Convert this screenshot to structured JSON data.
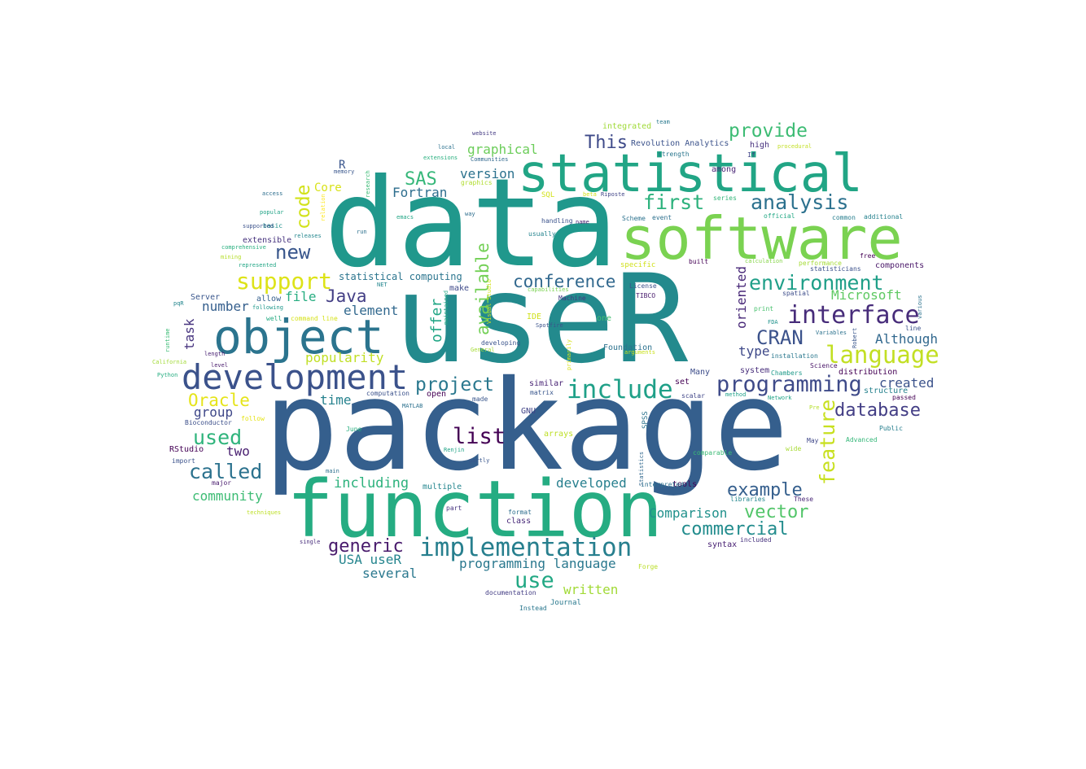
{
  "words": [
    {
      "text": "useR",
      "color": "#238a8d"
    },
    {
      "text": "package",
      "color": "#355f8d"
    },
    {
      "text": "data",
      "color": "#20988c"
    },
    {
      "text": "function",
      "color": "#25ac82"
    },
    {
      "text": "software",
      "color": "#7ad251"
    },
    {
      "text": "statistical",
      "color": "#21a585"
    },
    {
      "text": "object",
      "color": "#2b748e"
    },
    {
      "text": "development",
      "color": "#3b528b"
    },
    {
      "text": "implementation",
      "color": "#277f8e"
    },
    {
      "text": "interface",
      "color": "#472c7a"
    },
    {
      "text": "language",
      "color": "#c2df23"
    },
    {
      "text": "programming",
      "color": "#3e4a89"
    },
    {
      "text": "environment",
      "color": "#1f9f88"
    },
    {
      "text": "analysis",
      "color": "#2c718e"
    },
    {
      "text": "support",
      "color": "#dde318"
    },
    {
      "text": "include",
      "color": "#1fa088"
    },
    {
      "text": "provide",
      "color": "#3dbc74"
    },
    {
      "text": "first",
      "color": "#2db27d"
    },
    {
      "text": "database",
      "color": "#433e85"
    },
    {
      "text": "feature",
      "color": "#c8e020"
    },
    {
      "text": "called",
      "color": "#2c728e"
    },
    {
      "text": "used",
      "color": "#2fb47c"
    },
    {
      "text": "list",
      "color": "#440154"
    },
    {
      "text": "project",
      "color": "#2a788e"
    },
    {
      "text": "CRAN",
      "color": "#3b528b"
    },
    {
      "text": "conference",
      "color": "#31688e"
    },
    {
      "text": "commercial",
      "color": "#228c8d"
    },
    {
      "text": "vector",
      "color": "#52c569"
    },
    {
      "text": "example",
      "color": "#355f8d"
    },
    {
      "text": "code",
      "color": "#d2e21b"
    },
    {
      "text": "generic",
      "color": "#481a6c"
    },
    {
      "text": "new",
      "color": "#39568c"
    },
    {
      "text": "use",
      "color": "#22a884"
    },
    {
      "text": "available",
      "color": "#73d056"
    },
    {
      "text": "Java",
      "color": "#433e85"
    },
    {
      "text": "This",
      "color": "#3e4a89"
    },
    {
      "text": "Oracle",
      "color": "#e5e419"
    },
    {
      "text": "programming language",
      "color": "#2a788e"
    },
    {
      "text": "SAS",
      "color": "#35b779"
    },
    {
      "text": "Microsoft",
      "color": "#5ec962"
    },
    {
      "text": "offer",
      "color": "#21a685"
    },
    {
      "text": "including",
      "color": "#2db27d"
    },
    {
      "text": "created",
      "color": "#3b528b"
    },
    {
      "text": "Although",
      "color": "#31688e"
    },
    {
      "text": "oriented",
      "color": "#482878"
    },
    {
      "text": "graphical",
      "color": "#6ccd5a"
    },
    {
      "text": "popularity",
      "color": "#c0df25"
    },
    {
      "text": "developed",
      "color": "#277f8e"
    },
    {
      "text": "community",
      "color": "#3dbc74"
    },
    {
      "text": "Comparison",
      "color": "#21918c"
    },
    {
      "text": "element",
      "color": "#31688e"
    },
    {
      "text": "version",
      "color": "#2c728e"
    },
    {
      "text": "Fortran",
      "color": "#2e6e8e"
    },
    {
      "text": "USA useR",
      "color": "#25858e"
    },
    {
      "text": "several",
      "color": "#2a788e"
    },
    {
      "text": "written",
      "color": "#a2da37"
    },
    {
      "text": "number",
      "color": "#355f8d"
    },
    {
      "text": "task",
      "color": "#46337e"
    },
    {
      "text": "file",
      "color": "#27ad81"
    },
    {
      "text": "time",
      "color": "#26828e"
    },
    {
      "text": "group",
      "color": "#3f4889"
    },
    {
      "text": "two",
      "color": "#481f70"
    },
    {
      "text": "type",
      "color": "#3e4989"
    },
    {
      "text": "Core",
      "color": "#d8e219"
    },
    {
      "text": "R",
      "color": "#39558c"
    },
    {
      "text": "statistical computing",
      "color": "#2b758e"
    },
    {
      "text": "Revolution Analytics",
      "color": "#3b528b"
    },
    {
      "text": "integrated",
      "color": "#a0da39"
    },
    {
      "text": "distribution",
      "color": "#440154"
    },
    {
      "text": "structure",
      "color": "#26828e"
    },
    {
      "text": "Foundation",
      "color": "#2c728e"
    },
    {
      "text": "multiple",
      "color": "#24868e"
    },
    {
      "text": "tools",
      "color": "#440154"
    },
    {
      "text": "system",
      "color": "#472d7b"
    },
    {
      "text": "similar",
      "color": "#482374"
    },
    {
      "text": "Many",
      "color": "#3d4d8a"
    },
    {
      "text": "set",
      "color": "#440154"
    },
    {
      "text": "components",
      "color": "#481668"
    },
    {
      "text": "syntax",
      "color": "#482173"
    },
    {
      "text": "SPSS",
      "color": "#2c738e"
    },
    {
      "text": "matrix",
      "color": "#39568c"
    },
    {
      "text": "computation",
      "color": "#3b518b"
    },
    {
      "text": "open",
      "color": "#440154"
    },
    {
      "text": "GNU",
      "color": "#414487"
    },
    {
      "text": "arrays",
      "color": "#bddf26"
    },
    {
      "text": "extensible",
      "color": "#46327e"
    },
    {
      "text": "Server",
      "color": "#39568c"
    },
    {
      "text": "allow",
      "color": "#355f8d"
    },
    {
      "text": "License",
      "color": "#3b528b"
    },
    {
      "text": "TIBCO",
      "color": "#481b6d"
    },
    {
      "text": "Machine",
      "color": "#453882"
    },
    {
      "text": "IDE",
      "color": "#d0e11c"
    },
    {
      "text": "one",
      "color": "#44bf70"
    },
    {
      "text": "Scheme",
      "color": "#2c728e"
    },
    {
      "text": "handling",
      "color": "#3b528b"
    },
    {
      "text": "usually",
      "color": "#25848e"
    },
    {
      "text": "make",
      "color": "#3e4a89"
    },
    {
      "text": "developing",
      "color": "#3a548c"
    },
    {
      "text": "high",
      "color": "#46307e"
    },
    {
      "text": "among",
      "color": "#482475"
    },
    {
      "text": "strength",
      "color": "#2a768e"
    },
    {
      "text": "series",
      "color": "#34b679"
    },
    {
      "text": "event",
      "color": "#2d708e"
    },
    {
      "text": "official",
      "color": "#22a884"
    },
    {
      "text": "common",
      "color": "#277e8e"
    },
    {
      "text": "additional",
      "color": "#26828e"
    },
    {
      "text": "built",
      "color": "#440154"
    },
    {
      "text": "performance",
      "color": "#a5db36"
    },
    {
      "text": "free",
      "color": "#440154"
    },
    {
      "text": "statisticians",
      "color": "#3b518b"
    },
    {
      "text": "spatial",
      "color": "#3d4d8a"
    },
    {
      "text": "calculation",
      "color": "#86d549"
    },
    {
      "text": "Science",
      "color": "#481467"
    },
    {
      "text": "Chambers",
      "color": "#1f9a8a"
    },
    {
      "text": "installation",
      "color": "#2a788e"
    },
    {
      "text": "FDA",
      "color": "#20928c"
    },
    {
      "text": "print",
      "color": "#48c16e"
    },
    {
      "text": "Network",
      "color": "#20a386"
    },
    {
      "text": "method",
      "color": "#1fa188"
    },
    {
      "text": "scalar",
      "color": "#404688"
    },
    {
      "text": "passed",
      "color": "#440154"
    },
    {
      "text": "line",
      "color": "#3b528b"
    },
    {
      "text": "Public",
      "color": "#277f8e"
    },
    {
      "text": "Advanced",
      "color": "#35b779"
    },
    {
      "text": "May",
      "color": "#3f4788"
    },
    {
      "text": "wide",
      "color": "#a8db34"
    },
    {
      "text": "These",
      "color": "#482677"
    },
    {
      "text": "libraries",
      "color": "#24878e"
    },
    {
      "text": "comparable",
      "color": "#3bbb75"
    },
    {
      "text": "included",
      "color": "#46327e"
    },
    {
      "text": "Pre",
      "color": "#b5de2b"
    },
    {
      "text": "Statistics",
      "color": "#31688e"
    },
    {
      "text": "interpreted",
      "color": "#2d708e"
    },
    {
      "text": "format",
      "color": "#2e6e8e"
    },
    {
      "text": "class",
      "color": "#482979"
    },
    {
      "text": "part",
      "color": "#463480"
    },
    {
      "text": "Journal",
      "color": "#29798e"
    },
    {
      "text": "Instead",
      "color": "#2a778e"
    },
    {
      "text": "documentation",
      "color": "#433d84"
    },
    {
      "text": "Forge",
      "color": "#bade28"
    },
    {
      "text": "June",
      "color": "#29af7f"
    },
    {
      "text": "Renjin",
      "color": "#20a386"
    },
    {
      "text": "partly",
      "color": "#39568c"
    },
    {
      "text": "made",
      "color": "#39568c"
    },
    {
      "text": "MATLAB",
      "color": "#2c718e"
    },
    {
      "text": "Bioconductor",
      "color": "#3c4f8a"
    },
    {
      "text": "follow",
      "color": "#e5e419"
    },
    {
      "text": "RStudio",
      "color": "#440154"
    },
    {
      "text": "import",
      "color": "#3b528b"
    },
    {
      "text": "main",
      "color": "#2d708e"
    },
    {
      "text": "major",
      "color": "#481b6d"
    },
    {
      "text": "techniques",
      "color": "#bddf26"
    },
    {
      "text": "single",
      "color": "#472d7b"
    },
    {
      "text": "basic",
      "color": "#21918c"
    },
    {
      "text": "well",
      "color": "#25ab82"
    },
    {
      "text": "command line",
      "color": "#d5e21a"
    },
    {
      "text": "following",
      "color": "#1f988b"
    },
    {
      "text": "pqR",
      "color": "#24868e"
    },
    {
      "text": "runtime",
      "color": "#3bbb75"
    },
    {
      "text": "length",
      "color": "#482173"
    },
    {
      "text": "level",
      "color": "#481a6c"
    },
    {
      "text": "Python",
      "color": "#26ad81"
    },
    {
      "text": "California",
      "color": "#a2da37"
    },
    {
      "text": "NET",
      "color": "#24868e"
    },
    {
      "text": "represented",
      "color": "#21a685"
    },
    {
      "text": "mining",
      "color": "#b5de2b"
    },
    {
      "text": "comprehensive",
      "color": "#29af7f"
    },
    {
      "text": "supported",
      "color": "#3b528b"
    },
    {
      "text": "popular",
      "color": "#20a386"
    },
    {
      "text": "access",
      "color": "#2e6e8e"
    },
    {
      "text": "memory",
      "color": "#39568c"
    },
    {
      "text": "releases",
      "color": "#24878e"
    },
    {
      "text": "run",
      "color": "#2d708e"
    },
    {
      "text": "research",
      "color": "#3bbb75"
    },
    {
      "text": "relation",
      "color": "#fde725"
    },
    {
      "text": "emacs",
      "color": "#21a685"
    },
    {
      "text": "SQL",
      "color": "#d2e21b"
    },
    {
      "text": "graphics",
      "color": "#b0dd2f"
    },
    {
      "text": "way",
      "color": "#2e6e8e"
    },
    {
      "text": "extensions",
      "color": "#29af7f"
    },
    {
      "text": "local",
      "color": "#2c728e"
    },
    {
      "text": "Communities",
      "color": "#31688e"
    },
    {
      "text": "website",
      "color": "#443a83"
    },
    {
      "text": "team",
      "color": "#29798e"
    },
    {
      "text": "procedural",
      "color": "#c2df23"
    },
    {
      "text": "If",
      "color": "#404688"
    },
    {
      "text": "beta",
      "color": "#d2e21b"
    },
    {
      "text": "Riposte",
      "color": "#414487"
    },
    {
      "text": "name",
      "color": "#481f70"
    },
    {
      "text": "specific",
      "color": "#d0e11c"
    },
    {
      "text": "capabilities",
      "color": "#7ad151"
    },
    {
      "text": "Visual Studio",
      "color": "#d2e21b"
    },
    {
      "text": "Spotfire",
      "color": "#3b528b"
    },
    {
      "text": "maintained",
      "color": "#22a884"
    },
    {
      "text": "General",
      "color": "#a5db36"
    },
    {
      "text": "arguments",
      "color": "#cae11f"
    },
    {
      "text": "Variables",
      "color": "#2c728e"
    },
    {
      "text": "primarily",
      "color": "#d8e219"
    },
    {
      "text": "Robert",
      "color": "#39568c"
    },
    {
      "text": "various",
      "color": "#2c728e"
    }
  ]
}
